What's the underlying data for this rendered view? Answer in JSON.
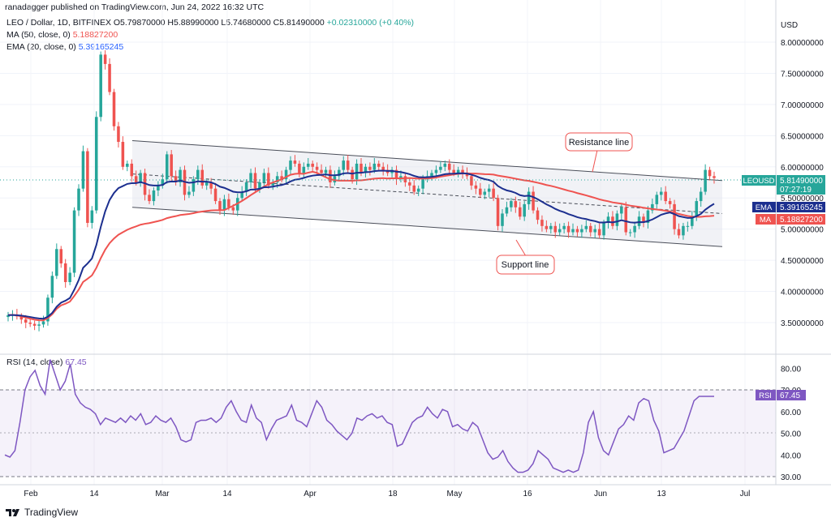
{
  "header": {
    "publisher": "ranadagger published on TradingView.com, Jun 24, 2022 16:32 UTC"
  },
  "legend": {
    "symbol": "LEO / Dollar, 1D, BITFINEX",
    "ohlc": "O5.79870000 H5.88990000 L5.74680000 C5.81490000",
    "change": "+0.02310000 (+0.40%)",
    "ma_label": "MA (50, close, 0)",
    "ma_value": "5.18827200",
    "ema_label": "EMA (20, close, 0)",
    "ema_value": "5.39165245",
    "rsi_label": "RSI (14, close)",
    "rsi_value": "67.45"
  },
  "price_scale": {
    "currency": "USD",
    "ticks": [
      "8.00000000",
      "7.50000000",
      "7.00000000",
      "6.50000000",
      "6.00000000",
      "5.50000000",
      "5.00000000",
      "4.50000000",
      "4.00000000",
      "3.50000000"
    ],
    "ticker_tag": "LEOUSD",
    "ticker_value": "5.81490000",
    "countdown": "07:27:19",
    "ema_tag": "EMA",
    "ema_value": "5.39165245",
    "ma_tag": "MA",
    "ma_value": "5.18827200"
  },
  "rsi_scale": {
    "ticks": [
      "80.00",
      "70.00",
      "60.00",
      "50.00",
      "40.00",
      "30.00"
    ],
    "tag": "RSI",
    "value": "67.45"
  },
  "time_axis": {
    "labels": [
      "Feb",
      "14",
      "Mar",
      "14",
      "Apr",
      "18",
      "May",
      "16",
      "Jun",
      "13",
      "Jul"
    ]
  },
  "annotations": {
    "resistance": "Resistance line",
    "support": "Support line"
  },
  "footer": {
    "brand": "TradingView"
  },
  "colors": {
    "up": "#26a69a",
    "down": "#ef5350",
    "ema": "#2962ff",
    "ma": "#ef5350",
    "rsi": "#7e57c2",
    "channel": "#363a45"
  },
  "chart_data": [
    {
      "type": "candlestick",
      "title": "LEO / Dollar, 1D, BITFINEX",
      "ylim": [
        3.3,
        8.3
      ],
      "x_labels": [
        "Feb",
        "14",
        "Mar",
        "14",
        "Apr",
        "18",
        "May",
        "16",
        "Jun",
        "13",
        "Jul"
      ],
      "close": [
        3.62,
        3.63,
        3.6,
        3.55,
        3.5,
        3.48,
        3.45,
        3.47,
        3.52,
        3.9,
        4.25,
        4.68,
        4.45,
        4.15,
        4.3,
        5.3,
        5.65,
        6.25,
        5.1,
        5.3,
        6.8,
        7.8,
        7.65,
        7.2,
        6.65,
        6.4,
        6.0,
        6.05,
        5.85,
        5.75,
        5.9,
        5.55,
        5.45,
        5.62,
        5.7,
        5.8,
        6.2,
        5.85,
        5.75,
        5.95,
        5.55,
        5.6,
        5.8,
        5.95,
        5.7,
        5.75,
        5.65,
        5.45,
        5.3,
        5.48,
        5.35,
        5.3,
        5.5,
        5.6,
        5.75,
        5.9,
        5.65,
        5.75,
        5.9,
        5.7,
        5.75,
        5.85,
        5.8,
        5.95,
        6.1,
        6.05,
        5.9,
        6.0,
        6.05,
        6.0,
        5.95,
        5.9,
        5.95,
        5.75,
        5.85,
        5.95,
        6.1,
        5.95,
        5.8,
        6.05,
        5.9,
        6.0,
        5.95,
        6.05,
        6.0,
        5.95,
        5.9,
        5.95,
        5.8,
        5.85,
        5.75,
        5.7,
        5.6,
        5.65,
        5.8,
        5.85,
        5.9,
        5.95,
        6.0,
        6.05,
        5.95,
        5.9,
        5.95,
        5.9,
        5.85,
        5.7,
        5.65,
        5.55,
        5.6,
        5.65,
        5.5,
        5.05,
        5.25,
        5.35,
        5.45,
        5.35,
        5.2,
        5.4,
        5.6,
        5.3,
        5.15,
        5.05,
        5.0,
        5.05,
        4.95,
        5.0,
        5.05,
        4.95,
        5.0,
        4.95,
        5.0,
        5.05,
        4.95,
        5.0,
        4.9,
        5.1,
        5.2,
        5.05,
        5.25,
        5.35,
        4.95,
        4.95,
        5.05,
        5.2,
        5.1,
        5.3,
        5.4,
        5.55,
        5.6,
        5.45,
        5.4,
        5.0,
        4.9,
        5.05,
        5.05,
        5.2,
        5.45,
        5.6,
        5.95,
        5.85,
        5.82
      ],
      "ema_20": 5.39165245,
      "ma_50": 5.188272,
      "trendlines": [
        {
          "name": "Resistance line",
          "from": [
            6.42
          ],
          "to": [
            5.78
          ]
        },
        {
          "name": "Support line",
          "from": [
            5.35
          ],
          "to": [
            4.72
          ]
        }
      ]
    },
    {
      "type": "line",
      "title": "RSI (14, close)",
      "ylim": [
        28,
        86
      ],
      "levels": [
        70,
        30
      ],
      "values": [
        40,
        39,
        42,
        55,
        70,
        76,
        79,
        72,
        68,
        84,
        77,
        70,
        74,
        82,
        68,
        64,
        62,
        61,
        59,
        54,
        57,
        56,
        55,
        57,
        55,
        58,
        56,
        59,
        54,
        55,
        58,
        56,
        55,
        57,
        53,
        47,
        46,
        47,
        55,
        56,
        56,
        57,
        55,
        57,
        62,
        65,
        60,
        56,
        55,
        63,
        57,
        55,
        47,
        52,
        56,
        57,
        58,
        63,
        56,
        55,
        53,
        59,
        65,
        62,
        56,
        54,
        51,
        49,
        47,
        50,
        57,
        56,
        58,
        59,
        57,
        58,
        55,
        54,
        44,
        45,
        50,
        55,
        57,
        58,
        62,
        59,
        57,
        61,
        60,
        53,
        54,
        52,
        51,
        55,
        53,
        47,
        41,
        38,
        39,
        42,
        37,
        34,
        32,
        32,
        33,
        36,
        42,
        40,
        38,
        34,
        33,
        32,
        33,
        32,
        33,
        41,
        55,
        60,
        48,
        42,
        40,
        46,
        52,
        54,
        58,
        56,
        64,
        66,
        65,
        56,
        51,
        41,
        42,
        43,
        47,
        51,
        58,
        65,
        67,
        67,
        67,
        67
      ]
    }
  ]
}
